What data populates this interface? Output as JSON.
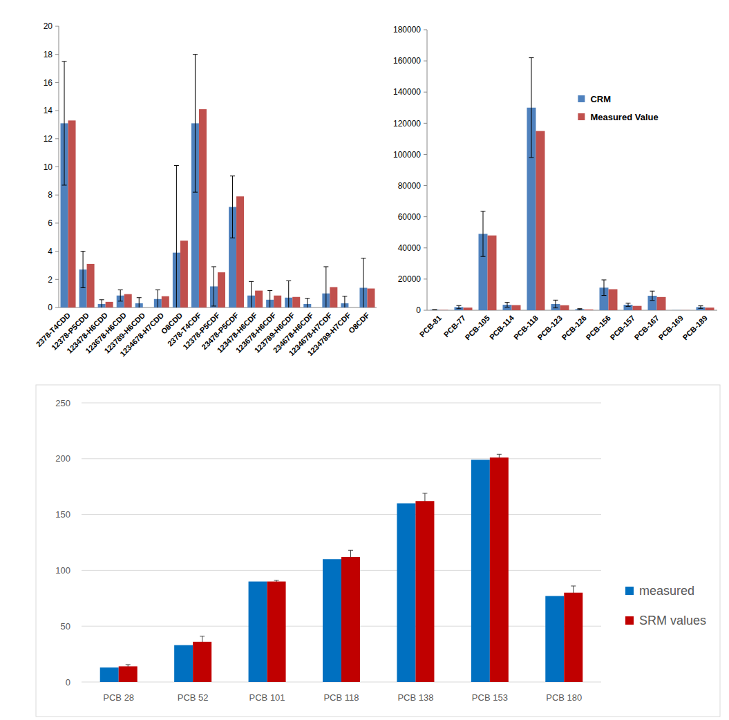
{
  "chart_data": [
    {
      "type": "bar",
      "categories": [
        "2378-T4CDD",
        "12378-P5CDD",
        "123478-H6CDD",
        "123678-H6CDD",
        "123789-H6CDD",
        "1234678-H7CDD",
        "O8CDD",
        "2378-T4CDF",
        "12378-P5CDF",
        "23478-P5CDF",
        "123478-H6CDF",
        "123678-H6CDF",
        "123789-H6CDF",
        "234678-H6CDF",
        "1234678-H7CDF",
        "1234789-H7CDF",
        "O8CDF"
      ],
      "series": [
        {
          "color": "#4F81BD",
          "values": [
            13.1,
            2.7,
            0.25,
            0.85,
            0.3,
            0.6,
            3.9,
            13.1,
            1.5,
            7.15,
            0.85,
            0.55,
            0.7,
            0.25,
            1.0,
            0.3,
            1.4
          ],
          "errors": [
            4.4,
            1.3,
            0.3,
            0.4,
            0.4,
            0.65,
            6.2,
            4.9,
            1.4,
            2.2,
            1.0,
            0.65,
            1.2,
            0.4,
            1.9,
            0.5,
            2.1
          ]
        },
        {
          "color": "#C0504D",
          "values": [
            13.3,
            3.1,
            0.4,
            0.95,
            0,
            0.8,
            4.75,
            14.1,
            2.5,
            7.9,
            1.2,
            0.85,
            0.75,
            0,
            1.45,
            0,
            1.35
          ]
        }
      ],
      "ylim": [
        0,
        20
      ],
      "yticks": [
        0,
        2,
        4,
        6,
        8,
        10,
        12,
        14,
        16,
        18,
        20
      ],
      "grid": false
    },
    {
      "type": "bar",
      "categories": [
        "PCB-81",
        "PCB-77",
        "PCB-105",
        "PCB-114",
        "PCB-118",
        "PCB-123",
        "PCB-126",
        "PCB-156",
        "PCB-157",
        "PCB-167",
        "PCB-169",
        "PCB-189"
      ],
      "series": [
        {
          "name": "CRM",
          "color": "#4F81BD",
          "values": [
            300,
            2000,
            49000,
            3500,
            130000,
            4000,
            700,
            14500,
            3500,
            9300,
            100,
            2000
          ],
          "errors": [
            100,
            1000,
            14500,
            1500,
            32000,
            2500,
            300,
            5000,
            1000,
            3000,
            null,
            800
          ]
        },
        {
          "name": "Measured Value",
          "color": "#C0504D",
          "values": [
            200,
            1700,
            48000,
            3300,
            115000,
            3200,
            500,
            13500,
            2800,
            8500,
            80,
            1700
          ]
        }
      ],
      "ylim": [
        0,
        180000
      ],
      "yticks": [
        0,
        20000,
        40000,
        60000,
        80000,
        100000,
        120000,
        140000,
        160000,
        180000
      ],
      "grid": false,
      "legend": "top-right"
    },
    {
      "type": "bar",
      "categories": [
        "PCB 28",
        "PCB 52",
        "PCB 101",
        "PCB 118",
        "PCB 138",
        "PCB 153",
        "PCB 180"
      ],
      "series": [
        {
          "name": "measured",
          "color": "#0070C0",
          "values": [
            13,
            33,
            90,
            110,
            160,
            199,
            77
          ]
        },
        {
          "name": "SRM values",
          "color": "#C00000",
          "values": [
            14,
            36,
            90,
            112,
            162,
            201,
            80
          ],
          "errors": [
            1.5,
            5,
            1,
            6,
            7,
            3,
            6
          ]
        }
      ],
      "ylim": [
        0,
        250
      ],
      "yticks": [
        0,
        50,
        100,
        150,
        200,
        250
      ],
      "grid": true,
      "legend": "right"
    }
  ]
}
